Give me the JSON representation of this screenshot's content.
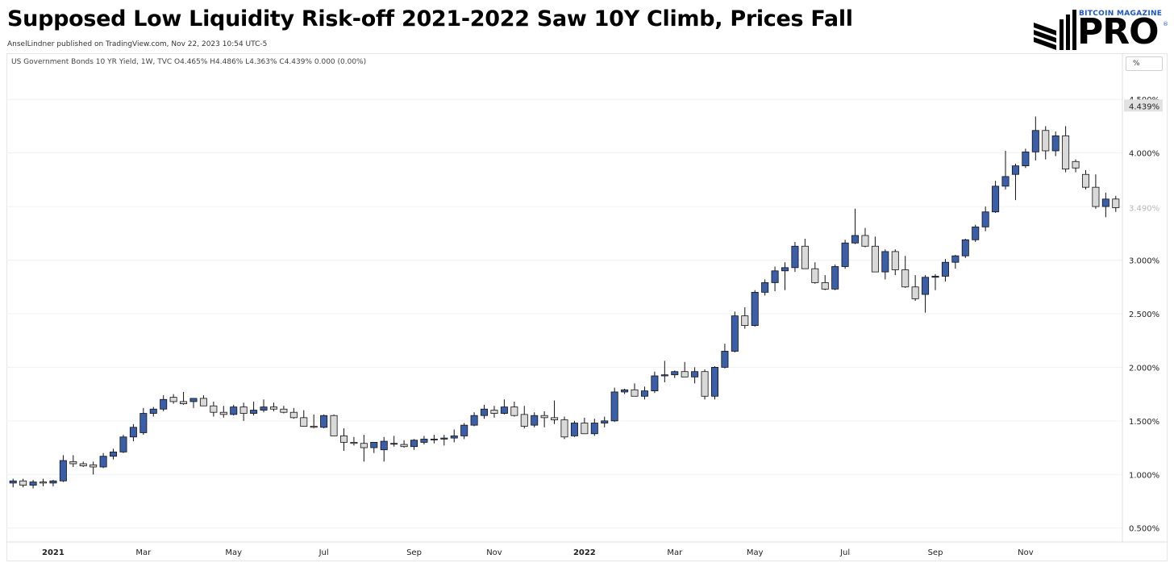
{
  "header": {
    "title": "Supposed Low Liquidity Risk-off 2021-2022 Saw 10Y Climb, Prices Fall",
    "byline": "AnselLindner published on TradingView.com, Nov 22, 2023 10:54 UTC-5",
    "legend": "US Government Bonds 10 YR Yield, 1W, TVC  O4.465%  H4.486%  L4.363%  C4.439%  0.000 (0.00%)"
  },
  "logo": {
    "top_text": "BITCOIN MAGAZINE",
    "main_text": "PRO",
    "reg": "®"
  },
  "axis": {
    "unit_label": "%",
    "price_tag_current": "4.439%",
    "price_tag_faded": "3.490%"
  },
  "colors": {
    "up": "#3a5fa8",
    "down": "#d9d9d9",
    "wick": "#111111",
    "grid": "#f0f0f0"
  },
  "chart_data": {
    "type": "candlestick",
    "title": "Supposed Low Liquidity Risk-off 2021-2022 Saw 10Y Climb, Prices Fall",
    "series_name": "US Government Bonds 10 YR Yield, 1W, TVC",
    "ylim": [
      0.4,
      4.75
    ],
    "yticks": [
      "0.500%",
      "1.000%",
      "1.500%",
      "2.000%",
      "2.500%",
      "3.000%",
      "3.500%",
      "4.000%",
      "4.500%"
    ],
    "ytick_values": [
      0.5,
      1.0,
      1.5,
      2.0,
      2.5,
      3.0,
      3.5,
      4.0,
      4.5
    ],
    "xticks": [
      {
        "label": "2021",
        "index": 4,
        "bold": true
      },
      {
        "label": "Mar",
        "index": 13,
        "bold": false
      },
      {
        "label": "May",
        "index": 22,
        "bold": false
      },
      {
        "label": "Jul",
        "index": 31,
        "bold": false
      },
      {
        "label": "Sep",
        "index": 40,
        "bold": false
      },
      {
        "label": "Nov",
        "index": 48,
        "bold": false
      },
      {
        "label": "2022",
        "index": 57,
        "bold": true
      },
      {
        "label": "Mar",
        "index": 66,
        "bold": false
      },
      {
        "label": "May",
        "index": 74,
        "bold": false
      },
      {
        "label": "Jul",
        "index": 83,
        "bold": false
      },
      {
        "label": "Sep",
        "index": 92,
        "bold": false
      },
      {
        "label": "Nov",
        "index": 101,
        "bold": false
      }
    ],
    "ohlc": [
      [
        0.92,
        0.96,
        0.88,
        0.94
      ],
      [
        0.94,
        0.96,
        0.88,
        0.9
      ],
      [
        0.9,
        0.95,
        0.87,
        0.93
      ],
      [
        0.93,
        0.96,
        0.89,
        0.92
      ],
      [
        0.92,
        0.95,
        0.89,
        0.94
      ],
      [
        0.94,
        1.18,
        0.93,
        1.13
      ],
      [
        1.12,
        1.18,
        1.07,
        1.1
      ],
      [
        1.1,
        1.12,
        1.07,
        1.08
      ],
      [
        1.09,
        1.12,
        1.0,
        1.07
      ],
      [
        1.07,
        1.2,
        1.06,
        1.17
      ],
      [
        1.17,
        1.24,
        1.14,
        1.21
      ],
      [
        1.21,
        1.37,
        1.2,
        1.35
      ],
      [
        1.35,
        1.47,
        1.31,
        1.44
      ],
      [
        1.39,
        1.62,
        1.37,
        1.57
      ],
      [
        1.57,
        1.63,
        1.54,
        1.61
      ],
      [
        1.61,
        1.74,
        1.59,
        1.7
      ],
      [
        1.72,
        1.75,
        1.66,
        1.68
      ],
      [
        1.68,
        1.77,
        1.65,
        1.66
      ],
      [
        1.68,
        1.71,
        1.62,
        1.71
      ],
      [
        1.71,
        1.74,
        1.64,
        1.64
      ],
      [
        1.64,
        1.68,
        1.54,
        1.58
      ],
      [
        1.58,
        1.64,
        1.53,
        1.56
      ],
      [
        1.56,
        1.65,
        1.55,
        1.63
      ],
      [
        1.63,
        1.67,
        1.5,
        1.57
      ],
      [
        1.57,
        1.68,
        1.55,
        1.6
      ],
      [
        1.6,
        1.7,
        1.58,
        1.63
      ],
      [
        1.63,
        1.67,
        1.59,
        1.61
      ],
      [
        1.61,
        1.64,
        1.57,
        1.58
      ],
      [
        1.58,
        1.62,
        1.52,
        1.53
      ],
      [
        1.53,
        1.6,
        1.45,
        1.45
      ],
      [
        1.45,
        1.56,
        1.43,
        1.44
      ],
      [
        1.44,
        1.56,
        1.43,
        1.55
      ],
      [
        1.55,
        1.56,
        1.36,
        1.36
      ],
      [
        1.36,
        1.43,
        1.22,
        1.3
      ],
      [
        1.3,
        1.35,
        1.27,
        1.29
      ],
      [
        1.29,
        1.37,
        1.12,
        1.25
      ],
      [
        1.25,
        1.29,
        1.2,
        1.3
      ],
      [
        1.23,
        1.35,
        1.12,
        1.31
      ],
      [
        1.29,
        1.36,
        1.26,
        1.29
      ],
      [
        1.28,
        1.32,
        1.25,
        1.26
      ],
      [
        1.26,
        1.33,
        1.23,
        1.32
      ],
      [
        1.3,
        1.36,
        1.28,
        1.33
      ],
      [
        1.33,
        1.37,
        1.29,
        1.33
      ],
      [
        1.33,
        1.37,
        1.27,
        1.34
      ],
      [
        1.34,
        1.42,
        1.3,
        1.36
      ],
      [
        1.36,
        1.48,
        1.33,
        1.46
      ],
      [
        1.46,
        1.58,
        1.45,
        1.55
      ],
      [
        1.55,
        1.65,
        1.52,
        1.61
      ],
      [
        1.6,
        1.64,
        1.53,
        1.57
      ],
      [
        1.57,
        1.7,
        1.56,
        1.63
      ],
      [
        1.63,
        1.68,
        1.54,
        1.55
      ],
      [
        1.56,
        1.64,
        1.43,
        1.45
      ],
      [
        1.46,
        1.58,
        1.44,
        1.55
      ],
      [
        1.55,
        1.59,
        1.44,
        1.53
      ],
      [
        1.53,
        1.69,
        1.47,
        1.51
      ],
      [
        1.51,
        1.54,
        1.33,
        1.35
      ],
      [
        1.36,
        1.5,
        1.35,
        1.48
      ],
      [
        1.48,
        1.53,
        1.39,
        1.38
      ],
      [
        1.38,
        1.52,
        1.36,
        1.48
      ],
      [
        1.48,
        1.54,
        1.44,
        1.5
      ],
      [
        1.5,
        1.81,
        1.49,
        1.77
      ],
      [
        1.77,
        1.8,
        1.75,
        1.79
      ],
      [
        1.79,
        1.85,
        1.74,
        1.73
      ],
      [
        1.73,
        1.82,
        1.7,
        1.78
      ],
      [
        1.78,
        1.96,
        1.76,
        1.92
      ],
      [
        1.92,
        2.06,
        1.86,
        1.93
      ],
      [
        1.93,
        1.97,
        1.9,
        1.96
      ],
      [
        1.96,
        2.05,
        1.91,
        1.91
      ],
      [
        1.91,
        2.0,
        1.85,
        1.96
      ],
      [
        1.96,
        1.98,
        1.7,
        1.73
      ],
      [
        1.73,
        2.01,
        1.7,
        2.0
      ],
      [
        2.0,
        2.22,
        1.99,
        2.15
      ],
      [
        2.15,
        2.52,
        2.14,
        2.48
      ],
      [
        2.48,
        2.56,
        2.36,
        2.39
      ],
      [
        2.39,
        2.72,
        2.38,
        2.7
      ],
      [
        2.7,
        2.82,
        2.67,
        2.79
      ],
      [
        2.79,
        2.94,
        2.71,
        2.9
      ],
      [
        2.9,
        2.98,
        2.72,
        2.93
      ],
      [
        2.93,
        3.17,
        2.89,
        3.13
      ],
      [
        3.13,
        3.2,
        2.92,
        2.92
      ],
      [
        2.92,
        2.98,
        2.78,
        2.79
      ],
      [
        2.79,
        2.86,
        2.72,
        2.73
      ],
      [
        2.73,
        2.96,
        2.72,
        2.94
      ],
      [
        2.94,
        3.19,
        2.92,
        3.16
      ],
      [
        3.16,
        3.48,
        3.15,
        3.23
      ],
      [
        3.23,
        3.3,
        3.12,
        3.13
      ],
      [
        3.13,
        3.22,
        2.89,
        2.89
      ],
      [
        2.89,
        3.1,
        2.82,
        3.08
      ],
      [
        3.08,
        3.1,
        2.86,
        2.91
      ],
      [
        2.91,
        3.04,
        2.74,
        2.75
      ],
      [
        2.75,
        2.86,
        2.62,
        2.64
      ],
      [
        2.68,
        2.86,
        2.51,
        2.84
      ],
      [
        2.84,
        2.87,
        2.72,
        2.85
      ],
      [
        2.85,
        3.01,
        2.8,
        2.98
      ],
      [
        2.98,
        3.05,
        2.92,
        3.04
      ],
      [
        3.04,
        3.2,
        3.02,
        3.19
      ],
      [
        3.19,
        3.33,
        3.17,
        3.31
      ],
      [
        3.31,
        3.5,
        3.27,
        3.45
      ],
      [
        3.45,
        3.74,
        3.44,
        3.69
      ],
      [
        3.69,
        4.02,
        3.66,
        3.78
      ],
      [
        3.8,
        3.9,
        3.56,
        3.88
      ],
      [
        3.88,
        4.04,
        3.86,
        4.01
      ],
      [
        4.01,
        4.34,
        3.93,
        4.21
      ],
      [
        4.21,
        4.25,
        3.94,
        4.02
      ],
      [
        4.02,
        4.2,
        3.97,
        4.16
      ],
      [
        4.16,
        4.25,
        3.82,
        3.85
      ],
      [
        3.92,
        3.94,
        3.82,
        3.86
      ],
      [
        3.8,
        3.84,
        3.66,
        3.68
      ],
      [
        3.68,
        3.8,
        3.48,
        3.5
      ],
      [
        3.5,
        3.63,
        3.4,
        3.57
      ],
      [
        3.57,
        3.6,
        3.45,
        3.49
      ]
    ]
  }
}
